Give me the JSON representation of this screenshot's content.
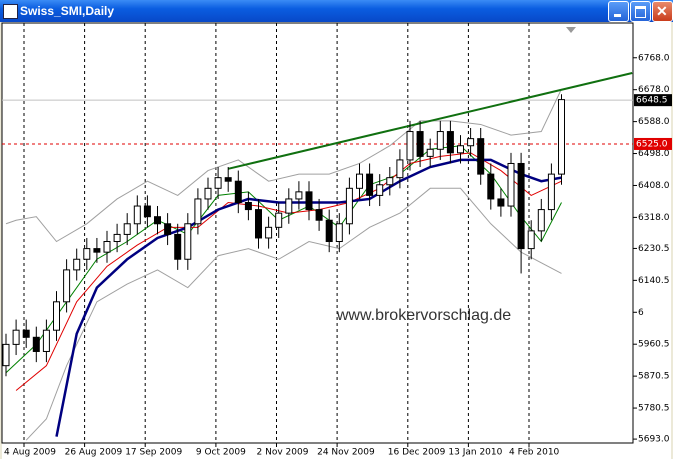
{
  "window": {
    "title": "Swiss_SMI,Daily"
  },
  "chart_data": {
    "type": "candlestick",
    "watermark": "www.brokervorschlag.de",
    "ylim": [
      5682,
      6866
    ],
    "yticks": [
      {
        "value": 6768,
        "label": "6768.0"
      },
      {
        "value": 6678,
        "label": "6678.0"
      },
      {
        "value": 6588,
        "label": "6588.0"
      },
      {
        "value": 6498,
        "label": "6498.0"
      },
      {
        "value": 6408,
        "label": "6408.0"
      },
      {
        "value": 6318,
        "label": "6318.0"
      },
      6230.5,
      6140.5,
      {
        "value": 6050.5,
        "label": "6"
      },
      5960.5,
      5870.5,
      5780.5,
      {
        "value": 5693,
        "label": "5693.0"
      }
    ],
    "xticks": [
      {
        "value": 0,
        "label": "4 Aug 2009"
      },
      {
        "value": 6,
        "label": "26 Aug 2009"
      },
      {
        "value": 12,
        "label": "17 Sep 2009"
      },
      {
        "value": 19,
        "label": "9 Oct 2009"
      },
      {
        "value": 25,
        "label": "2 Nov 2009"
      },
      {
        "value": 31,
        "label": "24 Nov 2009"
      },
      {
        "value": 38,
        "label": "16 Dec 2009"
      },
      {
        "value": 44,
        "label": "13 Jan 2010"
      },
      {
        "value": 50,
        "label": "4 Feb 2010"
      }
    ],
    "grid": true,
    "up_color": "#ffffff",
    "down_color": "#000000",
    "open": [
      5900,
      5960,
      6000,
      5980,
      5940,
      6000,
      6080,
      6170,
      6200,
      6230,
      6220,
      6250,
      6270,
      6300,
      6350,
      6320,
      6300,
      6270,
      6200,
      6300,
      6370,
      6400,
      6430,
      6420,
      6360,
      6340,
      6260,
      6290,
      6330,
      6370,
      6390,
      6340,
      6310,
      6250,
      6300,
      6400,
      6440,
      6380,
      6410,
      6430,
      6480,
      6560,
      6490,
      6510,
      6560,
      6500,
      6520,
      6540,
      6440,
      6370,
      6350,
      6470,
      6230,
      6280,
      6340,
      6440
    ],
    "high": [
      5990,
      6030,
      6030,
      6010,
      6030,
      6110,
      6200,
      6230,
      6260,
      6260,
      6280,
      6300,
      6330,
      6380,
      6380,
      6350,
      6330,
      6300,
      6330,
      6400,
      6430,
      6460,
      6460,
      6450,
      6390,
      6370,
      6320,
      6360,
      6400,
      6420,
      6420,
      6370,
      6340,
      6330,
      6430,
      6470,
      6470,
      6440,
      6460,
      6510,
      6590,
      6590,
      6540,
      6590,
      6590,
      6550,
      6570,
      6570,
      6470,
      6400,
      6500,
      6500,
      6310,
      6370,
      6470,
      6665
    ],
    "low": [
      5870,
      5930,
      5950,
      5910,
      5910,
      5970,
      6050,
      6140,
      6170,
      6190,
      6190,
      6220,
      6240,
      6270,
      6290,
      6270,
      6240,
      6170,
      6170,
      6270,
      6340,
      6370,
      6390,
      6330,
      6310,
      6230,
      6230,
      6260,
      6300,
      6340,
      6310,
      6280,
      6220,
      6220,
      6270,
      6370,
      6350,
      6350,
      6380,
      6400,
      6450,
      6460,
      6460,
      6480,
      6470,
      6470,
      6490,
      6410,
      6340,
      6320,
      6320,
      6160,
      6200,
      6250,
      6310,
      6410
    ],
    "close": [
      5960,
      6000,
      5980,
      5940,
      6000,
      6080,
      6170,
      6200,
      6230,
      6220,
      6250,
      6270,
      6300,
      6350,
      6320,
      6300,
      6270,
      6200,
      6300,
      6370,
      6400,
      6430,
      6420,
      6360,
      6340,
      6260,
      6290,
      6330,
      6370,
      6390,
      6340,
      6310,
      6250,
      6300,
      6400,
      6440,
      6380,
      6410,
      6430,
      6480,
      6560,
      6490,
      6510,
      6560,
      6500,
      6520,
      6540,
      6440,
      6370,
      6350,
      6470,
      6230,
      6280,
      6340,
      6440,
      6650
    ],
    "lines": [
      {
        "color": "#a0a0a0",
        "width": 1,
        "x": [
          0,
          1,
          3,
          5,
          8,
          11,
          14,
          17,
          20,
          23,
          26,
          29,
          32,
          35,
          38,
          41,
          44,
          47,
          50,
          53,
          55
        ],
        "values": [
          6300,
          6310,
          6320,
          6250,
          6300,
          6370,
          6420,
          6380,
          6450,
          6480,
          6420,
          6440,
          6440,
          6470,
          6520,
          6590,
          6590,
          6580,
          6550,
          6560,
          6680
        ]
      },
      {
        "color": "#a0a0a0",
        "width": 1,
        "x": [
          2,
          4,
          6,
          9,
          12,
          15,
          18,
          21,
          24,
          27,
          30,
          33,
          36,
          39,
          42,
          45,
          48,
          51,
          53,
          55
        ],
        "values": [
          5690,
          5750,
          5900,
          6080,
          6130,
          6170,
          6120,
          6210,
          6230,
          6200,
          6250,
          6230,
          6290,
          6330,
          6400,
          6400,
          6300,
          6220,
          6190,
          6160
        ]
      },
      {
        "color": "#008000",
        "width": 1,
        "x": [
          0,
          3,
          6,
          9,
          12,
          15,
          18,
          21,
          24,
          27,
          30,
          33,
          36,
          39,
          42,
          45,
          48,
          51,
          53,
          55
        ],
        "values": [
          5880,
          5960,
          6080,
          6200,
          6250,
          6310,
          6270,
          6380,
          6390,
          6310,
          6350,
          6290,
          6410,
          6440,
          6510,
          6520,
          6440,
          6320,
          6250,
          6360
        ]
      },
      {
        "color": "#e00000",
        "width": 1,
        "x": [
          1,
          4,
          7,
          10,
          13,
          16,
          19,
          22,
          25,
          28,
          31,
          34,
          37,
          40,
          43,
          46,
          49,
          52,
          55
        ],
        "values": [
          5830,
          5900,
          6080,
          6180,
          6240,
          6290,
          6290,
          6360,
          6350,
          6330,
          6340,
          6360,
          6400,
          6470,
          6490,
          6500,
          6450,
          6380,
          6420
        ]
      },
      {
        "color": "#000080",
        "width": 2.5,
        "x": [
          5,
          7,
          9,
          12,
          15,
          18,
          21,
          24,
          27,
          30,
          33,
          36,
          39,
          42,
          45,
          48,
          51,
          53,
          55
        ],
        "values": [
          5700,
          5990,
          6120,
          6200,
          6260,
          6290,
          6340,
          6370,
          6360,
          6360,
          6360,
          6370,
          6420,
          6460,
          6480,
          6480,
          6440,
          6420,
          6430
        ]
      },
      {
        "color": "#107010",
        "width": 2,
        "x": [
          22,
          62
        ],
        "values": [
          6455,
          6725
        ]
      }
    ],
    "price_levels": [
      {
        "value": 6648.5,
        "label": "6648.5",
        "color": "#000000",
        "line_color": "#c0c0c0",
        "dashed": false
      },
      {
        "value": 6525,
        "label": "6525.0",
        "color": "#e00000",
        "line_color": "#e00000",
        "dashed": true
      }
    ]
  }
}
